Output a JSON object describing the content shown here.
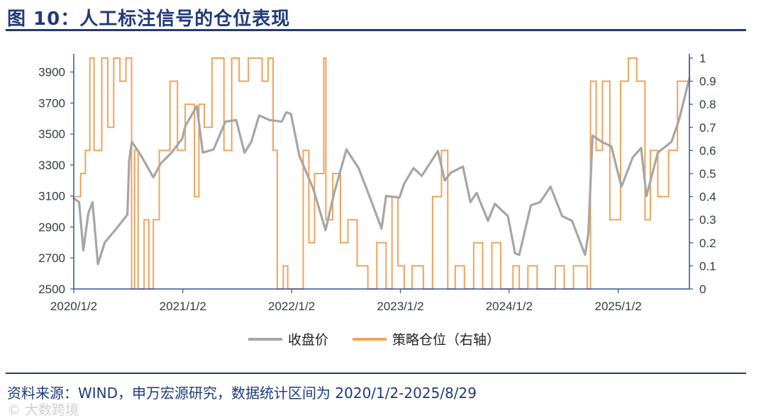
{
  "figure_title": "图 10：人工标注信号的仓位表现",
  "source_note": "资料来源：WIND，申万宏源研究，数据统计区间为 2020/1/2-2025/8/29",
  "watermark": "© 大数跨境",
  "colors": {
    "title": "#1f3a7a",
    "close": "#a6a6a6",
    "position": "#f0a35b",
    "axis": "#2f5597"
  },
  "chart_data": {
    "type": "line",
    "x_ticks": [
      "2020/1/2",
      "2021/1/2",
      "2022/1/2",
      "2023/1/2",
      "2024/1/2",
      "2025/1/2"
    ],
    "x_range": [
      "2020-01-02",
      "2025-08-29"
    ],
    "left_axis": {
      "ticks": [
        2500,
        2700,
        2900,
        3100,
        3300,
        3500,
        3700,
        3900
      ],
      "range": [
        2500,
        3990
      ]
    },
    "right_axis": {
      "ticks": [
        "0",
        "0.1",
        "0.2",
        "0.3",
        "0.4",
        "0.5",
        "0.6",
        "0.7",
        "0.8",
        "0.9",
        "1"
      ],
      "range": [
        0,
        1
      ]
    },
    "legend": [
      "收盘价",
      "策略仓位（右轴）"
    ],
    "legend_position": "bottom",
    "grid": false,
    "series": [
      {
        "name": "收盘价",
        "axis": "left",
        "points": [
          [
            "2020-01-02",
            3085
          ],
          [
            "2020-01-20",
            3060
          ],
          [
            "2020-02-03",
            2750
          ],
          [
            "2020-02-20",
            2990
          ],
          [
            "2020-03-05",
            3060
          ],
          [
            "2020-03-23",
            2660
          ],
          [
            "2020-04-15",
            2800
          ],
          [
            "2020-05-20",
            2880
          ],
          [
            "2020-06-30",
            2980
          ],
          [
            "2020-07-06",
            3330
          ],
          [
            "2020-07-15",
            3450
          ],
          [
            "2020-08-15",
            3360
          ],
          [
            "2020-09-25",
            3220
          ],
          [
            "2020-10-20",
            3310
          ],
          [
            "2020-11-25",
            3380
          ],
          [
            "2020-12-31",
            3470
          ],
          [
            "2021-01-10",
            3550
          ],
          [
            "2021-02-18",
            3680
          ],
          [
            "2021-03-10",
            3380
          ],
          [
            "2021-04-15",
            3400
          ],
          [
            "2021-05-25",
            3580
          ],
          [
            "2021-06-30",
            3590
          ],
          [
            "2021-07-28",
            3380
          ],
          [
            "2021-08-20",
            3450
          ],
          [
            "2021-09-15",
            3620
          ],
          [
            "2021-10-20",
            3590
          ],
          [
            "2021-11-30",
            3580
          ],
          [
            "2021-12-15",
            3640
          ],
          [
            "2021-12-31",
            3630
          ],
          [
            "2022-01-28",
            3360
          ],
          [
            "2022-03-15",
            3150
          ],
          [
            "2022-04-26",
            2880
          ],
          [
            "2022-05-25",
            3120
          ],
          [
            "2022-07-05",
            3400
          ],
          [
            "2022-08-15",
            3280
          ],
          [
            "2022-09-20",
            3100
          ],
          [
            "2022-10-31",
            2890
          ],
          [
            "2022-11-15",
            3100
          ],
          [
            "2022-12-30",
            3090
          ],
          [
            "2023-01-15",
            3180
          ],
          [
            "2023-02-15",
            3280
          ],
          [
            "2023-03-15",
            3230
          ],
          [
            "2023-05-08",
            3390
          ],
          [
            "2023-05-31",
            3200
          ],
          [
            "2023-06-20",
            3250
          ],
          [
            "2023-07-31",
            3290
          ],
          [
            "2023-08-25",
            3060
          ],
          [
            "2023-09-15",
            3120
          ],
          [
            "2023-10-23",
            2940
          ],
          [
            "2023-11-15",
            3050
          ],
          [
            "2023-12-29",
            2970
          ],
          [
            "2024-01-22",
            2730
          ],
          [
            "2024-02-05",
            2720
          ],
          [
            "2024-03-15",
            3040
          ],
          [
            "2024-04-15",
            3060
          ],
          [
            "2024-05-20",
            3160
          ],
          [
            "2024-06-28",
            2970
          ],
          [
            "2024-07-31",
            2940
          ],
          [
            "2024-09-13",
            2720
          ],
          [
            "2024-09-24",
            2860
          ],
          [
            "2024-10-08",
            3490
          ],
          [
            "2024-11-08",
            3450
          ],
          [
            "2024-12-10",
            3420
          ],
          [
            "2025-01-13",
            3160
          ],
          [
            "2025-02-20",
            3350
          ],
          [
            "2025-03-20",
            3410
          ],
          [
            "2025-04-07",
            3100
          ],
          [
            "2025-05-15",
            3380
          ],
          [
            "2025-06-30",
            3450
          ],
          [
            "2025-07-25",
            3590
          ],
          [
            "2025-08-29",
            3860
          ]
        ]
      },
      {
        "name": "策略仓位（右轴）",
        "axis": "right",
        "points": [
          [
            "2020-01-02",
            0.4
          ],
          [
            "2020-01-25",
            0.5
          ],
          [
            "2020-02-10",
            0.6
          ],
          [
            "2020-02-25",
            1.0
          ],
          [
            "2020-03-10",
            0.6
          ],
          [
            "2020-04-05",
            1.0
          ],
          [
            "2020-04-25",
            0.7
          ],
          [
            "2020-05-15",
            1.0
          ],
          [
            "2020-06-05",
            0.9
          ],
          [
            "2020-06-25",
            1.0
          ],
          [
            "2020-07-14",
            0.0
          ],
          [
            "2020-07-24",
            0.6
          ],
          [
            "2020-08-05",
            0.0
          ],
          [
            "2020-08-25",
            0.3
          ],
          [
            "2020-09-10",
            0.0
          ],
          [
            "2020-09-25",
            0.3
          ],
          [
            "2020-10-15",
            0.6
          ],
          [
            "2020-11-20",
            0.9
          ],
          [
            "2020-12-15",
            0.6
          ],
          [
            "2021-01-10",
            0.8
          ],
          [
            "2021-02-10",
            0.4
          ],
          [
            "2021-02-25",
            0.8
          ],
          [
            "2021-03-15",
            0.7
          ],
          [
            "2021-04-10",
            1.0
          ],
          [
            "2021-05-20",
            0.6
          ],
          [
            "2021-06-15",
            1.0
          ],
          [
            "2021-07-10",
            0.9
          ],
          [
            "2021-08-10",
            1.0
          ],
          [
            "2021-09-25",
            0.9
          ],
          [
            "2021-10-15",
            1.0
          ],
          [
            "2021-11-01",
            0.6
          ],
          [
            "2021-11-15",
            0.0
          ],
          [
            "2021-12-05",
            0.1
          ],
          [
            "2021-12-20",
            0.0
          ],
          [
            "2022-01-15",
            0.0
          ],
          [
            "2022-02-10",
            0.6
          ],
          [
            "2022-03-01",
            0.2
          ],
          [
            "2022-03-20",
            0.5
          ],
          [
            "2022-04-20",
            1.0
          ],
          [
            "2022-04-27",
            0.3
          ],
          [
            "2022-05-20",
            0.5
          ],
          [
            "2022-06-15",
            0.2
          ],
          [
            "2022-07-10",
            0.3
          ],
          [
            "2022-08-10",
            0.1
          ],
          [
            "2022-09-15",
            0.0
          ],
          [
            "2022-10-15",
            0.2
          ],
          [
            "2022-11-15",
            0.0
          ],
          [
            "2022-12-05",
            0.4
          ],
          [
            "2022-12-25",
            0.1
          ],
          [
            "2023-01-15",
            0.0
          ],
          [
            "2023-02-10",
            0.1
          ],
          [
            "2023-03-20",
            0.0
          ],
          [
            "2023-04-20",
            0.4
          ],
          [
            "2023-05-20",
            0.6
          ],
          [
            "2023-06-10",
            0.0
          ],
          [
            "2023-07-05",
            0.1
          ],
          [
            "2023-08-05",
            0.0
          ],
          [
            "2023-09-05",
            0.2
          ],
          [
            "2023-10-05",
            0.0
          ],
          [
            "2023-11-05",
            0.2
          ],
          [
            "2023-12-05",
            0.0
          ],
          [
            "2024-01-15",
            0.1
          ],
          [
            "2024-02-05",
            0.0
          ],
          [
            "2024-03-05",
            0.1
          ],
          [
            "2024-04-05",
            0.0
          ],
          [
            "2024-06-05",
            0.1
          ],
          [
            "2024-07-05",
            0.0
          ],
          [
            "2024-08-05",
            0.1
          ],
          [
            "2024-09-20",
            0.0
          ],
          [
            "2024-10-01",
            0.9
          ],
          [
            "2024-10-20",
            0.6
          ],
          [
            "2024-11-10",
            0.9
          ],
          [
            "2024-12-05",
            0.3
          ],
          [
            "2025-01-10",
            0.9
          ],
          [
            "2025-02-05",
            1.0
          ],
          [
            "2025-03-05",
            0.9
          ],
          [
            "2025-04-02",
            0.3
          ],
          [
            "2025-04-20",
            0.6
          ],
          [
            "2025-05-15",
            0.4
          ],
          [
            "2025-06-20",
            0.6
          ],
          [
            "2025-07-20",
            0.9
          ],
          [
            "2025-08-29",
            1.0
          ]
        ]
      }
    ]
  }
}
